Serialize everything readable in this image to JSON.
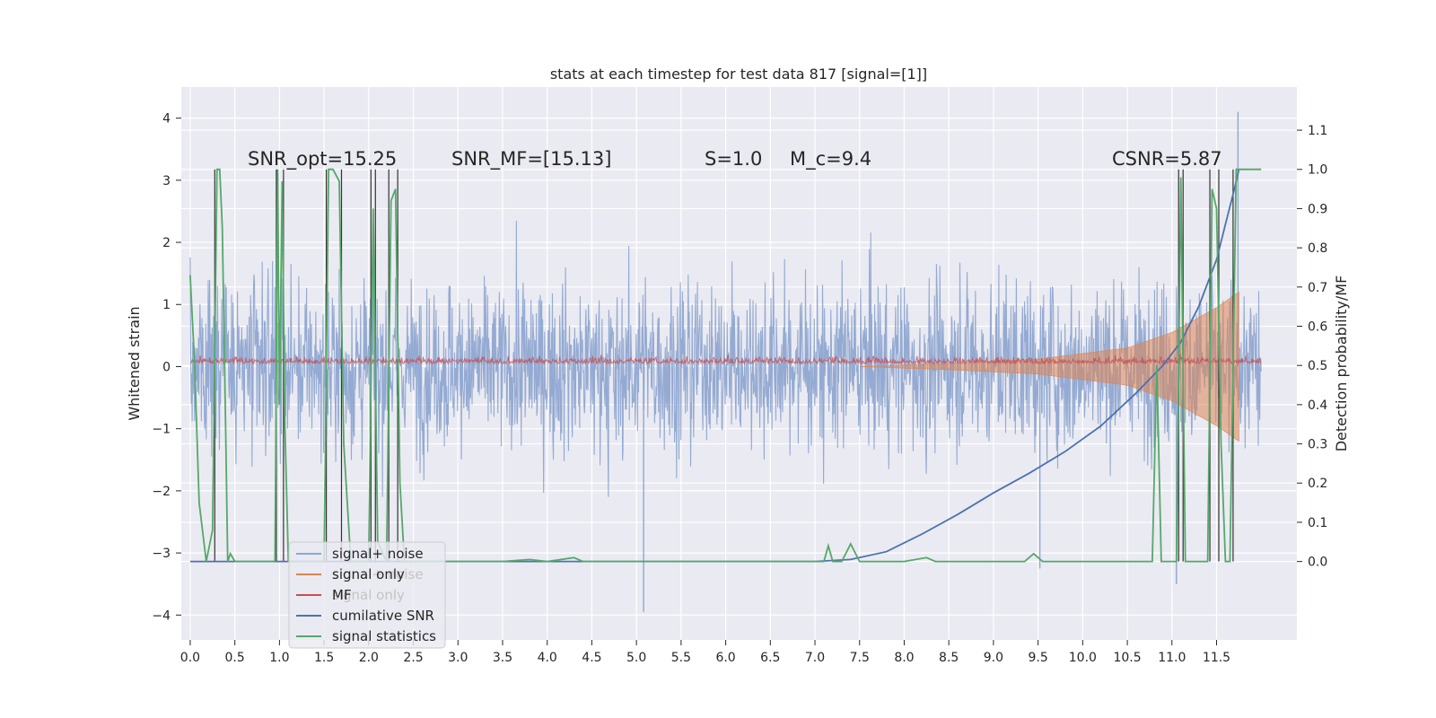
{
  "chart_data": {
    "type": "line",
    "title": "stats at each timestep for test data 817 [signal=[1]]",
    "ylabel": "Whitened strain",
    "y2label": "Detection probability/MF",
    "xlim": [
      -0.1,
      12.4
    ],
    "ylim": [
      -4.4,
      4.5
    ],
    "y2lim": [
      -0.2,
      1.21
    ],
    "x_ticks": [
      0.0,
      0.5,
      1.0,
      1.5,
      2.0,
      2.5,
      3.0,
      3.5,
      4.0,
      4.5,
      5.0,
      5.5,
      6.0,
      6.5,
      7.0,
      7.5,
      8.0,
      8.5,
      9.0,
      9.5,
      10.0,
      10.5,
      11.0,
      11.5
    ],
    "x_tick_labels": [
      "0.0",
      "0.5",
      "1.0",
      "1.5",
      "2.0",
      "2.5",
      "3.0",
      "3.5",
      "4.0",
      "4.5",
      "5.0",
      "5.5",
      "6.0",
      "6.5",
      "7.0",
      "7.5",
      "8.0",
      "8.5",
      "9.0",
      "9.5",
      "10.0",
      "10.5",
      "11.0",
      "11.5"
    ],
    "y_ticks": [
      -4,
      -3,
      -2,
      -1,
      0,
      1,
      2,
      3,
      4
    ],
    "y_tick_labels": [
      "−4",
      "−3",
      "−2",
      "−1",
      "0",
      "1",
      "2",
      "3",
      "4"
    ],
    "y2_ticks": [
      0.0,
      0.1,
      0.2,
      0.3,
      0.4,
      0.5,
      0.6,
      0.7,
      0.8,
      0.9,
      1.0,
      1.1
    ],
    "y2_tick_labels": [
      "0.0",
      "0.1",
      "0.2",
      "0.3",
      "0.4",
      "0.5",
      "0.6",
      "0.7",
      "0.8",
      "0.9",
      "1.0",
      "1.1"
    ],
    "grid": true,
    "legend_position": "lower-left",
    "annotations": [
      "SNR_opt=15.25",
      "SNR_MF=[15.13]",
      "S=1.0",
      "M_c=9.4",
      "CSNR=5.87"
    ],
    "series": [
      {
        "name": "signal+ noise",
        "axis": "left",
        "color": "#8fa6d0",
        "x_range": [
          0.0,
          12.0
        ],
        "envelope": "broadband noise approx. ±2 with peaks near ±3.5",
        "peaks": [
          [
            11.74,
            4.1
          ],
          [
            5.08,
            -3.95
          ],
          [
            11.05,
            -3.5
          ],
          [
            9.52,
            -3.25
          ]
        ]
      },
      {
        "name": "signal only",
        "axis": "left",
        "color": "#dd8452",
        "x_range": [
          7.5,
          11.75
        ],
        "envelope": [
          [
            7.5,
            0.0
          ],
          [
            8.5,
            0.05
          ],
          [
            9.5,
            0.12
          ],
          [
            10.5,
            0.3
          ],
          [
            11.0,
            0.55
          ],
          [
            11.5,
            0.95
          ],
          [
            11.75,
            1.2
          ]
        ]
      },
      {
        "name": "MF",
        "axis": "right",
        "color": "#c44e52",
        "x_range": [
          0.0,
          12.0
        ],
        "level": 0.505,
        "noise_amplitude": 0.015
      },
      {
        "name": "cumilative SNR",
        "axis": "right",
        "color": "#4c72b0",
        "x": [
          0.0,
          7.0,
          7.4,
          7.8,
          8.2,
          8.6,
          9.0,
          9.4,
          9.8,
          10.2,
          10.6,
          10.9,
          11.1,
          11.3,
          11.5,
          11.6,
          11.7,
          11.75
        ],
        "y": [
          0.0,
          0.0,
          0.005,
          0.025,
          0.07,
          0.12,
          0.175,
          0.225,
          0.28,
          0.345,
          0.43,
          0.5,
          0.56,
          0.65,
          0.77,
          0.86,
          0.95,
          1.0
        ]
      },
      {
        "name": "signal statistics",
        "axis": "right",
        "color": "#55a868",
        "x": [
          0.0,
          0.05,
          0.1,
          0.18,
          0.25,
          0.3,
          0.33,
          0.36,
          0.4,
          0.42,
          0.45,
          0.5,
          0.6,
          0.8,
          0.95,
          0.98,
          1.0,
          1.03,
          1.06,
          1.1,
          1.15,
          1.4,
          1.5,
          1.55,
          1.6,
          1.67,
          1.72,
          1.8,
          1.85,
          1.9,
          2.0,
          2.05,
          2.1,
          2.2,
          2.25,
          2.3,
          2.35,
          2.4,
          2.5,
          3.0,
          3.5,
          3.8,
          4.0,
          4.3,
          4.4,
          4.6,
          5.0,
          5.5,
          6.0,
          6.5,
          7.0,
          7.1,
          7.15,
          7.2,
          7.3,
          7.4,
          7.5,
          8.0,
          8.25,
          8.35,
          8.5,
          9.0,
          9.35,
          9.45,
          9.55,
          10.0,
          10.5,
          10.78,
          10.83,
          10.88,
          10.93,
          11.0,
          11.05,
          11.1,
          11.15,
          11.25,
          11.4,
          11.45,
          11.5,
          11.55,
          11.6,
          11.65,
          11.72,
          11.78,
          12.0
        ],
        "y": [
          0.73,
          0.5,
          0.15,
          0.0,
          0.08,
          1.0,
          1.0,
          0.85,
          0.3,
          0.0,
          0.02,
          0.0,
          0.0,
          0.0,
          0.0,
          1.0,
          0.4,
          0.97,
          0.35,
          0.0,
          0.0,
          0.0,
          0.0,
          1.0,
          1.0,
          0.97,
          0.3,
          0.0,
          0.0,
          0.0,
          0.0,
          0.9,
          0.05,
          0.0,
          0.92,
          0.95,
          0.2,
          0.0,
          0.0,
          0.0,
          0.0,
          0.005,
          0.0,
          0.01,
          0.0,
          0.0,
          0.0,
          0.0,
          0.0,
          0.0,
          0.0,
          0.0,
          0.04,
          0.0,
          0.0,
          0.045,
          0.0,
          0.0,
          0.01,
          0.0,
          0.0,
          0.0,
          0.0,
          0.02,
          0.0,
          0.0,
          0.0,
          0.0,
          0.5,
          0.0,
          0.0,
          0.0,
          0.0,
          0.98,
          0.0,
          0.0,
          0.0,
          0.95,
          0.9,
          0.3,
          0.0,
          0.0,
          1.0,
          1.0,
          1.0
        ]
      }
    ]
  },
  "legend": {
    "items": [
      {
        "label": "signal+ noise",
        "color": "#8fa6d0"
      },
      {
        "label": "signal only",
        "color": "#dd8452"
      },
      {
        "label": "MF",
        "color": "#c44e52"
      },
      {
        "label": "cumilative SNR",
        "color": "#4c72b0"
      },
      {
        "label": "signal statistics",
        "color": "#55a868"
      }
    ]
  },
  "colors": {
    "plot_background": "#eaeaf2",
    "grid": "#ffffff",
    "threshold_lines": "#333333",
    "text": "#262626"
  }
}
